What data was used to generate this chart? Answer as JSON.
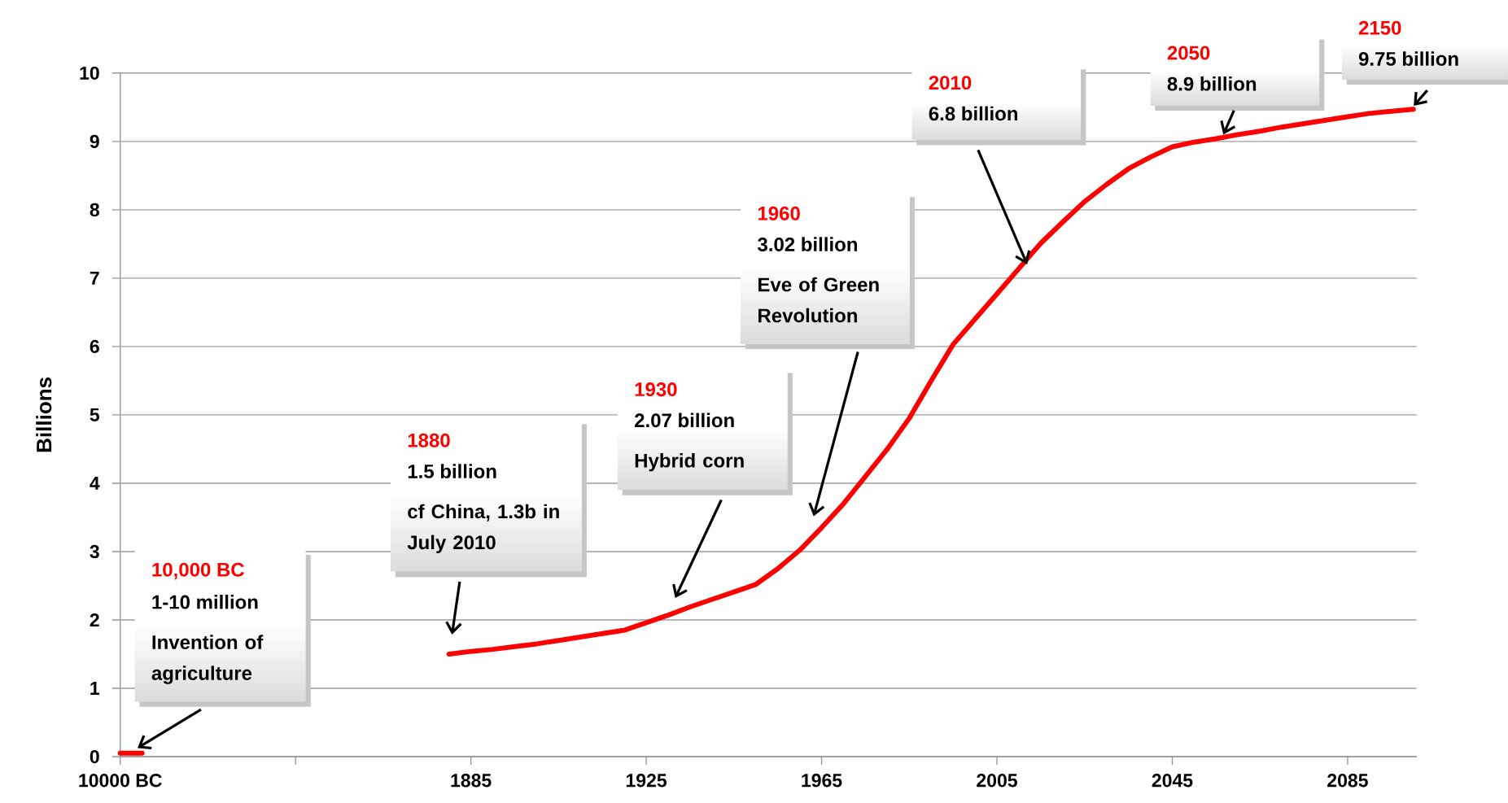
{
  "chart_data": {
    "type": "line",
    "ylabel": "Billions",
    "categories": [
      "10000 BC",
      null,
      null,
      null,
      null,
      null,
      null,
      null,
      null,
      null,
      null,
      null,
      null,
      null,
      null,
      null,
      "1885",
      null,
      null,
      null,
      null,
      null,
      null,
      null,
      "1925",
      null,
      null,
      null,
      null,
      null,
      null,
      null,
      "1965",
      null,
      null,
      null,
      null,
      null,
      null,
      null,
      "2005",
      null,
      null,
      null,
      null,
      null,
      null,
      null,
      "2045",
      null,
      null,
      null,
      null,
      null,
      null,
      null,
      "2085",
      null,
      null,
      null
    ],
    "series": [
      {
        "color": "#ff0000",
        "values": [
          0.05,
          0.05,
          null,
          null,
          null,
          null,
          null,
          null,
          null,
          null,
          null,
          null,
          null,
          null,
          null,
          1.5,
          1.54,
          1.57,
          1.61,
          1.65,
          1.7,
          1.75,
          1.8,
          1.85,
          1.96,
          2.07,
          2.19,
          2.3,
          2.41,
          2.52,
          2.75,
          3.02,
          3.35,
          3.7,
          4.1,
          4.5,
          4.95,
          5.5,
          6.03,
          6.4,
          6.77,
          7.14,
          7.51,
          7.82,
          8.12,
          8.37,
          8.6,
          8.77,
          8.92,
          8.99,
          9.04,
          9.1,
          9.15,
          9.21,
          9.26,
          9.31,
          9.36,
          9.41,
          9.44,
          9.47
        ]
      }
    ],
    "ylim": [
      0,
      10
    ],
    "yticks": [
      0,
      1,
      2,
      3,
      4,
      5,
      6,
      7,
      8,
      9,
      10
    ],
    "grid": "y",
    "marker": "none",
    "line_style": "solid",
    "annotations": [
      "10,000 BC",
      "1-10 million",
      "Invention of agriculture",
      "1880",
      "1.5 billion",
      "cf China, 1.3b in July 2010",
      "1930",
      "2.07 billion",
      "Hybrid corn",
      "1960",
      "3.02 billion",
      "Eve of Green Revolution",
      "2010",
      "6.8 billion",
      "2050",
      "8.9 billion",
      "2150",
      "9.75 billion"
    ]
  }
}
